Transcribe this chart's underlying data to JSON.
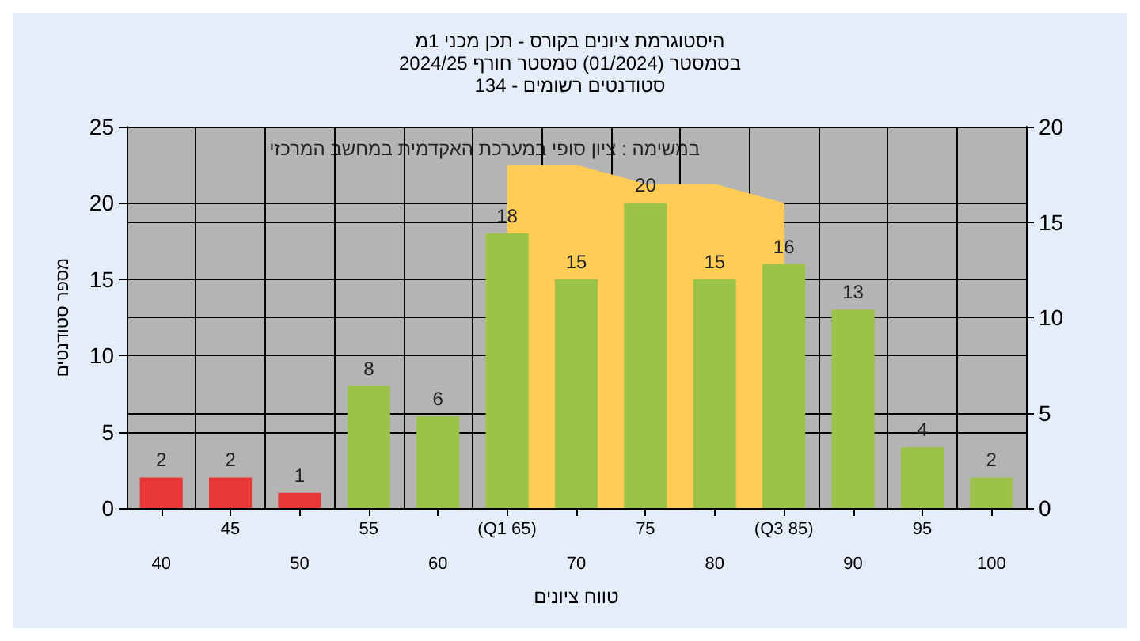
{
  "chart_data": {
    "type": "bar",
    "title": "היסטוגרמת ציונים בקורס - תכן מכני 1מ",
    "subtitle": "בסמסטר (01/2024) סמסטר חורף 2024/25\nסטודנטים רשומים - 134",
    "xlabel": "טווח ציונים",
    "ylabel": "מספר סטודנטים",
    "annotations": [
      "במשימה : ציון סופי במערכת האקדמית במחשב המרכזי"
    ],
    "categories": [
      "40",
      "45",
      "50",
      "55",
      "60",
      "(Q1 65)",
      "70",
      "75",
      "80",
      "(Q3 85)",
      "90",
      "95",
      "100"
    ],
    "series": [
      {
        "type": "area",
        "axis": "y2",
        "color": "#ffcc55",
        "values": [
          null,
          null,
          null,
          null,
          null,
          18,
          18,
          17,
          17,
          16,
          null,
          null,
          null
        ]
      },
      {
        "value_labels": [
          "2",
          "2",
          "1",
          "8",
          "6",
          "18",
          "15",
          "20",
          "15",
          "16",
          "13",
          "4",
          "2"
        ],
        "colors": [
          "#e83838",
          "#e83838",
          "#e83838",
          "#9cc24a",
          "#9cc24a",
          "#9cc24a",
          "#9cc24a",
          "#9cc24a",
          "#9cc24a",
          "#9cc24a",
          "#9cc24a",
          "#9cc24a",
          "#9cc24a"
        ],
        "values": [
          2,
          2,
          1,
          8,
          6,
          18,
          15,
          20,
          15,
          16,
          13,
          4,
          2
        ]
      }
    ],
    "ylim": [
      0,
      25
    ],
    "yticks": [
      0,
      5,
      10,
      15,
      20,
      25
    ],
    "y2lim": [
      0,
      20
    ],
    "y2ticks": [
      0,
      5,
      10,
      15,
      20
    ],
    "grid": true
  }
}
